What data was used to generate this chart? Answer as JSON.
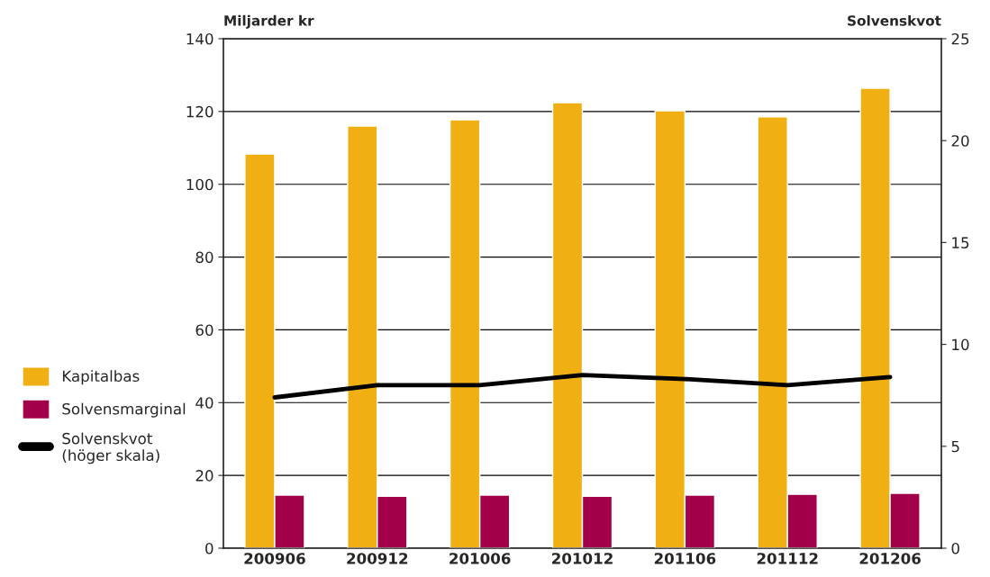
{
  "chart_data": {
    "type": "bar",
    "categories": [
      "200906",
      "200912",
      "201006",
      "201012",
      "201106",
      "201112",
      "201206"
    ],
    "series": [
      {
        "name": "Kapitalbas",
        "color": "#f0b014",
        "values": [
          108.3,
          116.0,
          117.7,
          122.4,
          120.2,
          118.5,
          126.4
        ]
      },
      {
        "name": "Solvensmarginal",
        "color": "#a3004a",
        "values": [
          14.6,
          14.3,
          14.6,
          14.3,
          14.6,
          14.8,
          15.1
        ]
      },
      {
        "name": "Solvenskvot\n(höger skala)",
        "type": "line",
        "axis": "y2",
        "color": "#000000",
        "values": [
          7.4,
          8.0,
          8.0,
          8.5,
          8.3,
          8.0,
          8.4
        ]
      }
    ],
    "ylabel": "Miljarder kr",
    "y2label": "Solvenskvot",
    "ylim": [
      0,
      140
    ],
    "yticks": [
      0,
      20,
      40,
      60,
      80,
      100,
      120,
      140
    ],
    "y2lim": [
      0,
      25
    ],
    "y2ticks": [
      0,
      5,
      10,
      15,
      20,
      25
    ],
    "grid": "y",
    "legend": "left",
    "marker": "none",
    "line_style": "solid"
  }
}
